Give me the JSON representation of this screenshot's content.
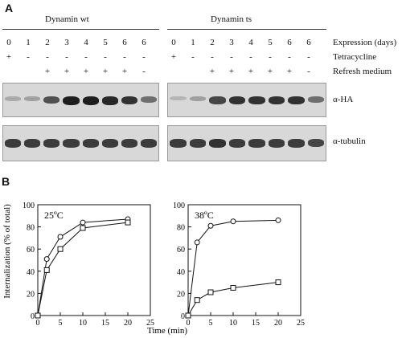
{
  "panelA": {
    "letter": "A",
    "groups": [
      {
        "title": "Dynamin wt",
        "days": [
          "0",
          "1",
          "2",
          "3",
          "4",
          "5",
          "6",
          "6"
        ],
        "tetracycline": [
          "+",
          "-",
          "-",
          "-",
          "-",
          "-",
          "-",
          "-"
        ],
        "refresh": [
          "",
          "",
          "+",
          "+",
          "+",
          "+",
          "+",
          "-"
        ]
      },
      {
        "title": "Dynamin ts",
        "days": [
          "0",
          "1",
          "2",
          "3",
          "4",
          "5",
          "6",
          "6"
        ],
        "tetracycline": [
          "+",
          "-",
          "-",
          "-",
          "-",
          "-",
          "-",
          "-"
        ],
        "refresh": [
          "",
          "",
          "+",
          "+",
          "+",
          "+",
          "+",
          "-"
        ]
      }
    ],
    "row_labels": {
      "expression": "Expression (days)",
      "tetracycline": "Tetracycline",
      "refresh": "Refresh medium"
    },
    "blot_labels": {
      "ha": "α-HA",
      "tubulin": "α-tubulin"
    },
    "band_intensity": {
      "wt_ha": [
        0.25,
        0.3,
        0.7,
        0.95,
        0.95,
        0.9,
        0.85,
        0.55
      ],
      "ts_ha": [
        0.2,
        0.3,
        0.75,
        0.85,
        0.85,
        0.85,
        0.85,
        0.55
      ],
      "wt_tub": [
        0.8,
        0.8,
        0.8,
        0.8,
        0.8,
        0.8,
        0.8,
        0.8
      ],
      "ts_tub": [
        0.8,
        0.8,
        0.85,
        0.8,
        0.8,
        0.8,
        0.8,
        0.75
      ]
    }
  },
  "panelB": {
    "letter": "B",
    "ylabel": "Internalization  (% of total)",
    "xlabel": "Time (min)",
    "charts": [
      {
        "label": "25ºC",
        "xticks": [
          "0",
          "5",
          "10",
          "15",
          "20",
          "25"
        ],
        "yticks": [
          "0",
          "20",
          "40",
          "60",
          "80",
          "100"
        ]
      },
      {
        "label": "38ºC",
        "xticks": [
          "0",
          "5",
          "10",
          "15",
          "20",
          "25"
        ],
        "yticks": [
          "0",
          "20",
          "40",
          "60",
          "80",
          "100"
        ]
      }
    ]
  },
  "chart_data": [
    {
      "type": "line",
      "title": "25ºC",
      "xlabel": "Time (min)",
      "ylabel": "Internalization  (% of total)",
      "xlim": [
        0,
        25
      ],
      "ylim": [
        0,
        100
      ],
      "series": [
        {
          "marker": "circle",
          "x": [
            0,
            2,
            5,
            10,
            20
          ],
          "y": [
            0,
            51,
            71,
            84,
            87
          ]
        },
        {
          "marker": "square",
          "x": [
            0,
            2,
            5,
            10,
            20
          ],
          "y": [
            0,
            41,
            60,
            79,
            84
          ]
        }
      ]
    },
    {
      "type": "line",
      "title": "38ºC",
      "xlabel": "Time (min)",
      "ylabel": "",
      "xlim": [
        0,
        25
      ],
      "ylim": [
        0,
        100
      ],
      "series": [
        {
          "marker": "circle",
          "x": [
            0,
            2,
            5,
            10,
            20
          ],
          "y": [
            0,
            66,
            81,
            85,
            86
          ]
        },
        {
          "marker": "square",
          "x": [
            0,
            2,
            5,
            10,
            20
          ],
          "y": [
            0,
            14,
            21,
            25,
            30
          ]
        }
      ]
    }
  ]
}
